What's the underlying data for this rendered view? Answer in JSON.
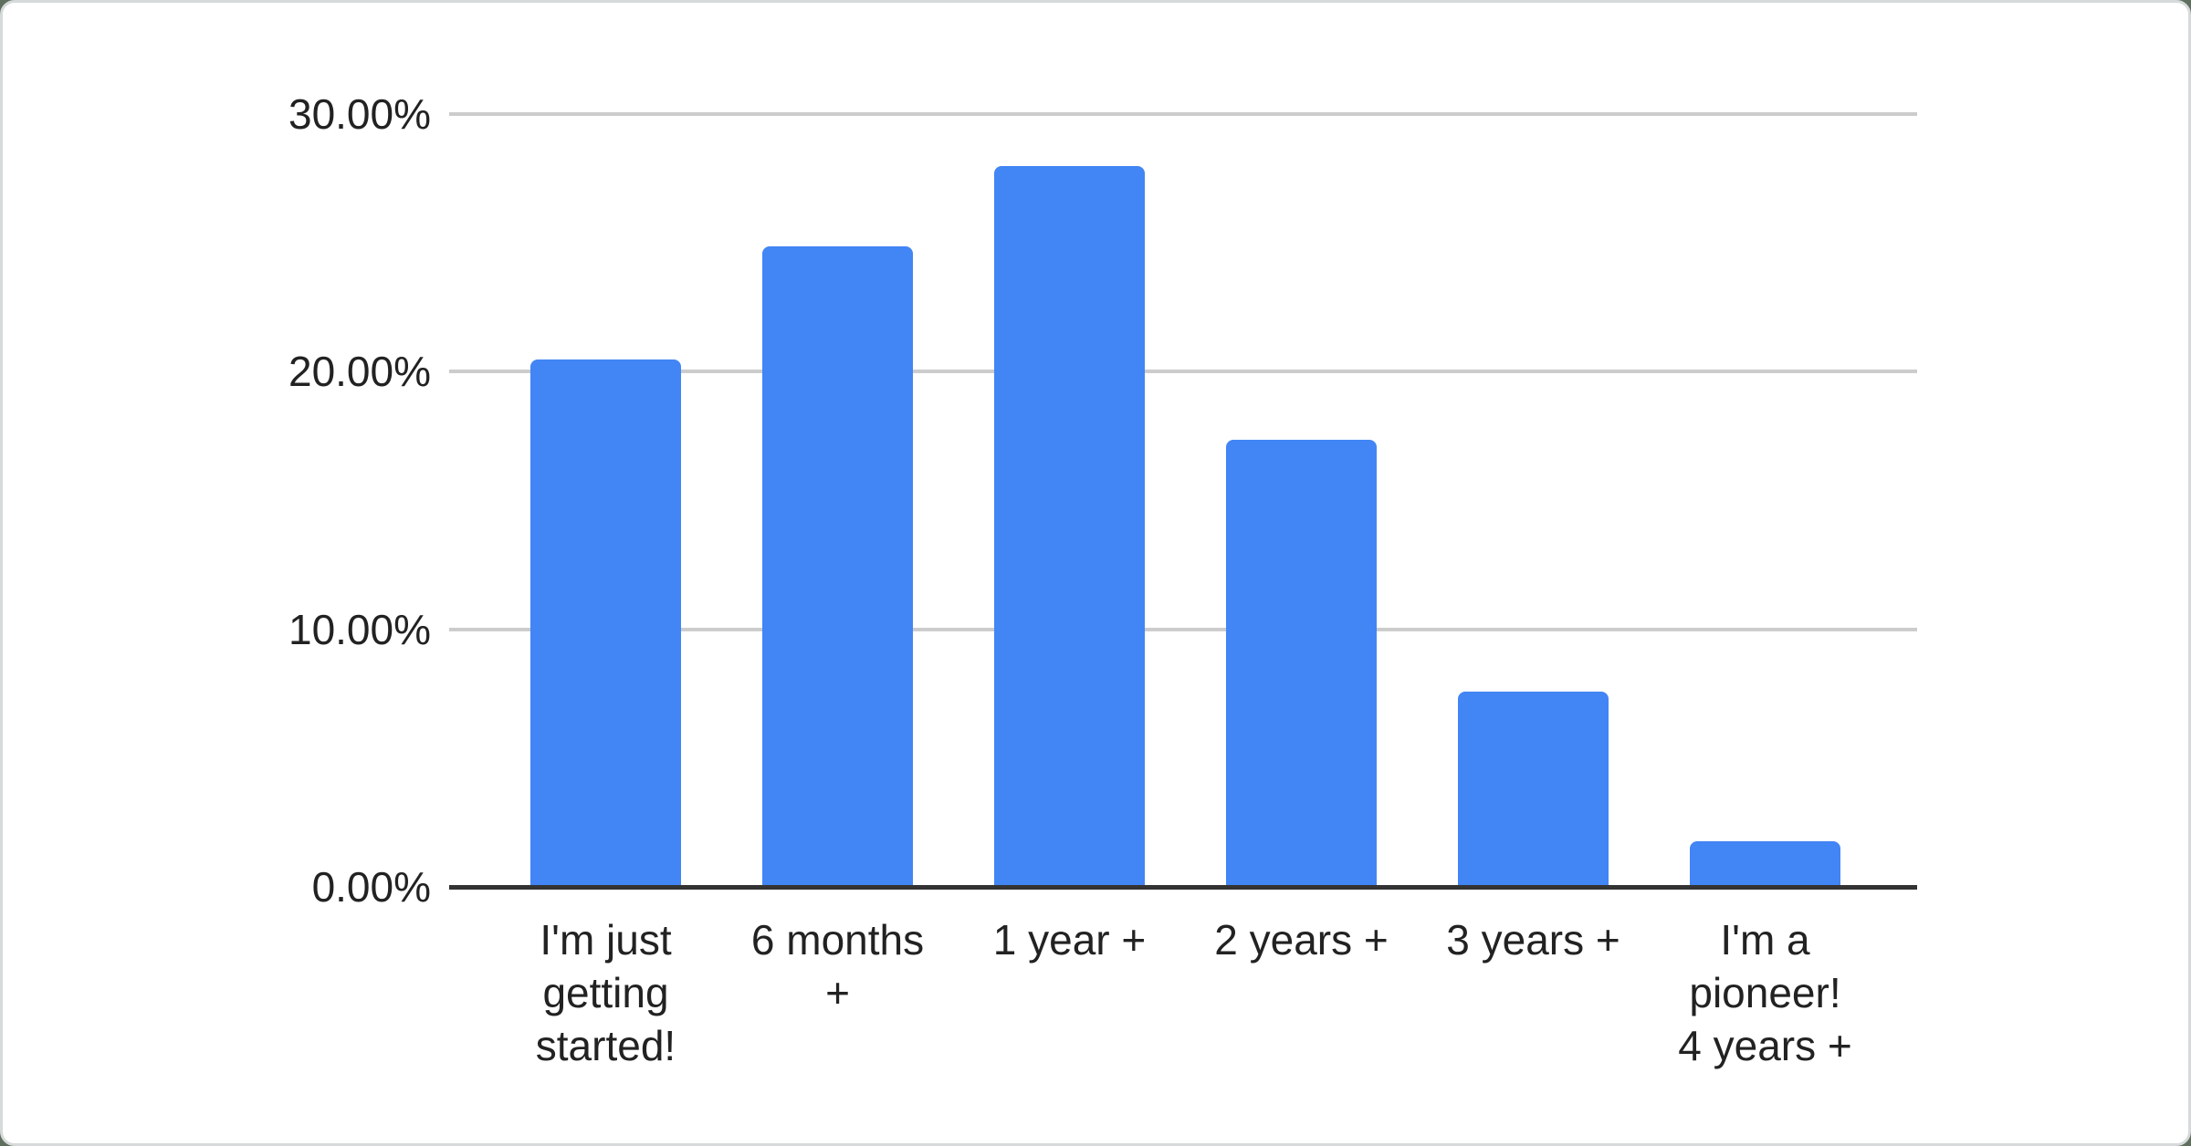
{
  "chart_data": {
    "type": "bar",
    "title": "",
    "xlabel": "",
    "ylabel": "",
    "categories": [
      "I'm just getting started!",
      "6 months +",
      "1 year +",
      "2 years +",
      "3 years +",
      "I'm a pioneer! 4 years +"
    ],
    "category_lines": [
      [
        "I'm just",
        "getting",
        "started!"
      ],
      [
        "6 months",
        "+"
      ],
      [
        "1 year +"
      ],
      [
        "2 years +"
      ],
      [
        "3 years +"
      ],
      [
        "I'm a",
        "pioneer!",
        "4 years +"
      ]
    ],
    "values": [
      20.4,
      24.8,
      27.9,
      17.3,
      7.5,
      1.7
    ],
    "value_unit": "%",
    "ylim": [
      0,
      30
    ],
    "yticks": [
      {
        "value": 0,
        "label": "0.00%"
      },
      {
        "value": 10,
        "label": "10.00%"
      },
      {
        "value": 20,
        "label": "20.00%"
      },
      {
        "value": 30,
        "label": "30.00%"
      }
    ],
    "grid": true,
    "legend": "none",
    "bar_color": "#4285f4"
  },
  "colors": {
    "page_background": "#5e6f5e",
    "card_background": "#ffffff",
    "card_border": "#d6dadb",
    "gridline": "#cccccc",
    "axis_line": "#333333",
    "label_text": "#222222",
    "bar": "#4285f4"
  }
}
